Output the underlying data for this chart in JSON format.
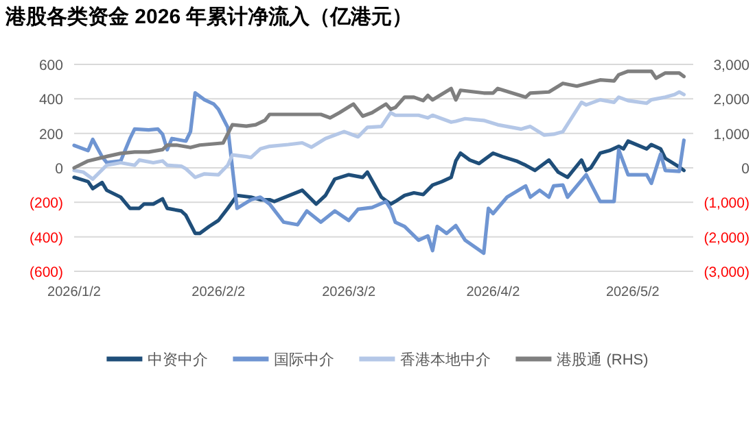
{
  "chart_data": {
    "type": "line",
    "title": "港股各类资金 2026 年累计净流入（亿港元）",
    "xlim": [
      "2026-01-02",
      "2026-05-15"
    ],
    "xticks": [
      {
        "value": "2026-01-02",
        "label": "2026/1/2"
      },
      {
        "value": "2026-02-02",
        "label": "2026/2/2"
      },
      {
        "value": "2026-03-02",
        "label": "2026/3/2"
      },
      {
        "value": "2026-04-02",
        "label": "2026/4/2"
      },
      {
        "value": "2026-05-02",
        "label": "2026/5/2"
      }
    ],
    "ylim": [
      -600,
      600
    ],
    "yticks": [
      {
        "value": -600,
        "label": "(600)"
      },
      {
        "value": -400,
        "label": "(400)"
      },
      {
        "value": -200,
        "label": "(200)"
      },
      0,
      200,
      400,
      600
    ],
    "y2lim": [
      -3000,
      3000
    ],
    "y2ticks": [
      {
        "value": -3000,
        "label": "(3,000)"
      },
      {
        "value": -2000,
        "label": "(2,000)"
      },
      {
        "value": -1000,
        "label": "(1,000)"
      },
      0,
      {
        "value": 1000,
        "label": "1,000"
      },
      {
        "value": 2000,
        "label": "2,000"
      },
      {
        "value": 3000,
        "label": "3,000"
      }
    ],
    "grid": "y",
    "legend": "bottom",
    "marker": "none",
    "line_style": "solid",
    "series": [
      {
        "name": "中资中介",
        "color": "#1f4e79",
        "x": [
          "2026-01-02",
          "2026-01-05",
          "2026-01-06",
          "2026-01-08",
          "2026-01-09",
          "2026-01-12",
          "2026-01-14",
          "2026-01-16",
          "2026-01-17",
          "2026-01-19",
          "2026-01-21",
          "2026-01-22",
          "2026-01-25",
          "2026-01-26",
          "2026-01-28",
          "2026-01-29",
          "2026-01-31",
          "2026-02-02",
          "2026-02-04",
          "2026-02-06",
          "2026-02-09",
          "2026-02-11",
          "2026-02-13",
          "2026-02-14",
          "2026-02-20",
          "2026-02-23",
          "2026-02-25",
          "2026-02-27",
          "2026-03-02",
          "2026-03-05",
          "2026-03-06",
          "2026-03-09",
          "2026-03-11",
          "2026-03-12",
          "2026-03-14",
          "2026-03-16",
          "2026-03-18",
          "2026-03-20",
          "2026-03-22",
          "2026-03-24",
          "2026-03-25",
          "2026-03-26",
          "2026-03-28",
          "2026-03-30",
          "2026-04-01",
          "2026-04-02",
          "2026-04-04",
          "2026-04-07",
          "2026-04-09",
          "2026-04-11",
          "2026-04-14",
          "2026-04-16",
          "2026-04-18",
          "2026-04-21",
          "2026-04-22",
          "2026-04-23",
          "2026-04-25",
          "2026-04-27",
          "2026-04-29",
          "2026-04-30",
          "2026-05-01",
          "2026-05-05",
          "2026-05-06",
          "2026-05-08",
          "2026-05-09",
          "2026-05-12",
          "2026-05-13"
        ],
        "values": [
          -55,
          -80,
          -120,
          -85,
          -130,
          -170,
          -235,
          -235,
          -210,
          -210,
          -180,
          -235,
          -250,
          -275,
          -380,
          -380,
          -340,
          -305,
          -235,
          -160,
          -170,
          -185,
          -185,
          -195,
          -130,
          -210,
          -160,
          -65,
          -40,
          -55,
          -25,
          -170,
          -210,
          -195,
          -160,
          -145,
          -155,
          -100,
          -80,
          -55,
          40,
          85,
          45,
          25,
          65,
          85,
          65,
          40,
          15,
          -15,
          45,
          -25,
          -55,
          45,
          -15,
          0,
          85,
          100,
          125,
          110,
          155,
          110,
          135,
          110,
          55,
          5,
          -15
        ]
      },
      {
        "name": "国际中介",
        "color": "#6f95d2",
        "x": [
          "2026-01-02",
          "2026-01-05",
          "2026-01-06",
          "2026-01-08",
          "2026-01-09",
          "2026-01-12",
          "2026-01-14",
          "2026-01-15",
          "2026-01-18",
          "2026-01-20",
          "2026-01-21",
          "2026-01-22",
          "2026-01-23",
          "2026-01-26",
          "2026-01-27",
          "2026-01-28",
          "2026-01-30",
          "2026-02-01",
          "2026-02-02",
          "2026-02-04",
          "2026-02-06",
          "2026-02-09",
          "2026-02-11",
          "2026-02-13",
          "2026-02-16",
          "2026-02-19",
          "2026-02-21",
          "2026-02-24",
          "2026-02-27",
          "2026-03-02",
          "2026-03-04",
          "2026-03-07",
          "2026-03-10",
          "2026-03-11",
          "2026-03-12",
          "2026-03-14",
          "2026-03-17",
          "2026-03-19",
          "2026-03-20",
          "2026-03-21",
          "2026-03-23",
          "2026-03-25",
          "2026-03-27",
          "2026-03-31",
          "2026-04-01",
          "2026-04-02",
          "2026-04-05",
          "2026-04-09",
          "2026-04-10",
          "2026-04-12",
          "2026-04-14",
          "2026-04-15",
          "2026-04-17",
          "2026-04-18",
          "2026-04-22",
          "2026-04-25",
          "2026-04-28",
          "2026-04-29",
          "2026-05-01",
          "2026-05-05",
          "2026-05-06",
          "2026-05-08",
          "2026-05-09",
          "2026-05-12",
          "2026-05-13"
        ],
        "values": [
          130,
          100,
          165,
          65,
          30,
          40,
          170,
          225,
          220,
          225,
          195,
          105,
          170,
          155,
          210,
          435,
          395,
          370,
          340,
          235,
          -235,
          -185,
          -170,
          -210,
          -315,
          -330,
          -250,
          -315,
          -250,
          -305,
          -240,
          -230,
          -195,
          -240,
          -315,
          -340,
          -420,
          -395,
          -480,
          -340,
          -380,
          -335,
          -420,
          -495,
          -235,
          -265,
          -170,
          -105,
          -170,
          -130,
          -170,
          -105,
          -100,
          -170,
          -40,
          -195,
          -195,
          105,
          -40,
          -40,
          -90,
          80,
          -15,
          -20,
          160
        ]
      },
      {
        "name": "香港本地中介",
        "color": "#b4c7e7",
        "x": [
          "2026-01-02",
          "2026-01-04",
          "2026-01-06",
          "2026-01-09",
          "2026-01-12",
          "2026-01-15",
          "2026-01-16",
          "2026-01-19",
          "2026-01-21",
          "2026-01-22",
          "2026-01-25",
          "2026-01-26",
          "2026-01-28",
          "2026-01-30",
          "2026-02-02",
          "2026-02-04",
          "2026-02-05",
          "2026-02-08",
          "2026-02-09",
          "2026-02-11",
          "2026-02-13",
          "2026-02-17",
          "2026-02-20",
          "2026-02-22",
          "2026-02-25",
          "2026-03-01",
          "2026-03-04",
          "2026-03-06",
          "2026-03-09",
          "2026-03-11",
          "2026-03-12",
          "2026-03-17",
          "2026-03-19",
          "2026-03-20",
          "2026-03-24",
          "2026-03-25",
          "2026-03-27",
          "2026-03-31",
          "2026-04-03",
          "2026-04-08",
          "2026-04-10",
          "2026-04-13",
          "2026-04-15",
          "2026-04-17",
          "2026-04-21",
          "2026-04-22",
          "2026-04-25",
          "2026-04-28",
          "2026-04-29",
          "2026-05-01",
          "2026-05-05",
          "2026-05-06",
          "2026-05-09",
          "2026-05-11",
          "2026-05-12",
          "2026-05-13"
        ],
        "values": [
          -15,
          -25,
          -65,
          15,
          30,
          15,
          45,
          30,
          40,
          15,
          10,
          -5,
          -55,
          -35,
          -40,
          15,
          75,
          65,
          60,
          110,
          125,
          135,
          145,
          120,
          170,
          210,
          180,
          235,
          240,
          320,
          305,
          305,
          290,
          305,
          265,
          270,
          285,
          275,
          250,
          225,
          240,
          190,
          195,
          210,
          380,
          365,
          395,
          380,
          410,
          390,
          375,
          395,
          410,
          425,
          440,
          425
        ]
      },
      {
        "name": "港股通 (RHS)",
        "color": "#7f7f7f",
        "axis": "y2",
        "x": [
          "2026-01-02",
          "2026-01-05",
          "2026-01-09",
          "2026-01-12",
          "2026-01-15",
          "2026-01-18",
          "2026-01-21",
          "2026-01-22",
          "2026-01-24",
          "2026-01-27",
          "2026-01-29",
          "2026-02-03",
          "2026-02-05",
          "2026-02-08",
          "2026-02-10",
          "2026-02-12",
          "2026-02-13",
          "2026-02-24",
          "2026-02-26",
          "2026-02-28",
          "2026-03-03",
          "2026-03-05",
          "2026-03-07",
          "2026-03-10",
          "2026-03-11",
          "2026-03-12",
          "2026-03-14",
          "2026-03-16",
          "2026-03-18",
          "2026-03-19",
          "2026-03-20",
          "2026-03-24",
          "2026-03-25",
          "2026-03-26",
          "2026-03-31",
          "2026-04-02",
          "2026-04-03",
          "2026-04-09",
          "2026-04-10",
          "2026-04-14",
          "2026-04-17",
          "2026-04-20",
          "2026-04-25",
          "2026-04-28",
          "2026-04-29",
          "2026-05-01",
          "2026-05-06",
          "2026-05-07",
          "2026-05-09",
          "2026-05-12",
          "2026-05-13"
        ],
        "values": [
          0,
          200,
          330,
          420,
          460,
          460,
          530,
          660,
          660,
          590,
          660,
          720,
          1250,
          1210,
          1250,
          1380,
          1550,
          1550,
          1450,
          1600,
          1850,
          1500,
          1600,
          1850,
          1700,
          1750,
          2050,
          2050,
          1950,
          2100,
          1970,
          2300,
          1970,
          2250,
          2170,
          2170,
          2300,
          2050,
          2170,
          2200,
          2450,
          2370,
          2550,
          2520,
          2700,
          2800,
          2800,
          2600,
          2750,
          2750,
          2650
        ]
      }
    ]
  }
}
